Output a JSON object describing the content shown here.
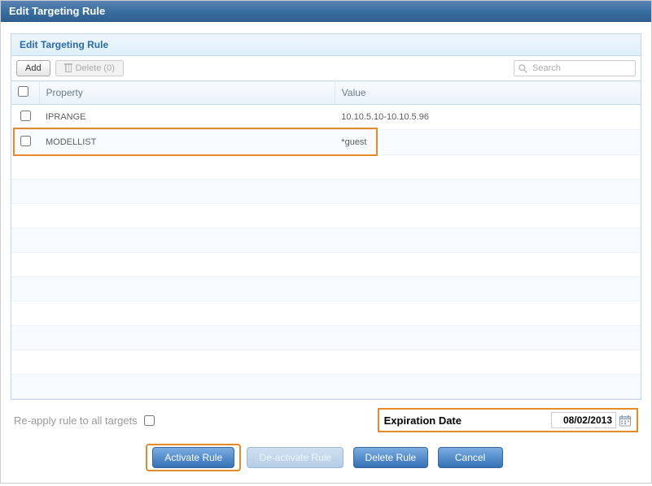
{
  "dialog": {
    "title": "Edit Targeting Rule"
  },
  "panel": {
    "title": "Edit Targeting Rule"
  },
  "toolbar": {
    "add_label": "Add",
    "delete_label": "Delete (0)",
    "search_placeholder": "Search"
  },
  "grid": {
    "columns": {
      "property": "Property",
      "value": "Value"
    },
    "rows": [
      {
        "property": "IPRANGE",
        "value": "10.10.5.10-10.10.5.96",
        "checked": false
      },
      {
        "property": "MODELLIST",
        "value": "*guest",
        "checked": false
      }
    ],
    "empty_row_count": 10,
    "header_bg": "#e9f2fa",
    "alt_row_bg": "#f7fbfe",
    "border_color": "#c5d6e8"
  },
  "highlights": {
    "row_index": 1,
    "color": "#e38b2a"
  },
  "footer": {
    "reapply_label": "Re-apply rule to all targets",
    "reapply_checked": false,
    "expiration_label": "Expiration Date",
    "expiration_value": "08/02/2013"
  },
  "buttons": {
    "activate": "Activate Rule",
    "deactivate": "De-activate Rule",
    "delete": "Delete Rule",
    "cancel": "Cancel"
  },
  "colors": {
    "titlebar_grad_top": "#5b85b5",
    "titlebar_grad_bottom": "#2f5f8f",
    "panel_header_text": "#2a6aa8",
    "button_primary": "#3571b4",
    "highlight": "#e38b2a"
  }
}
